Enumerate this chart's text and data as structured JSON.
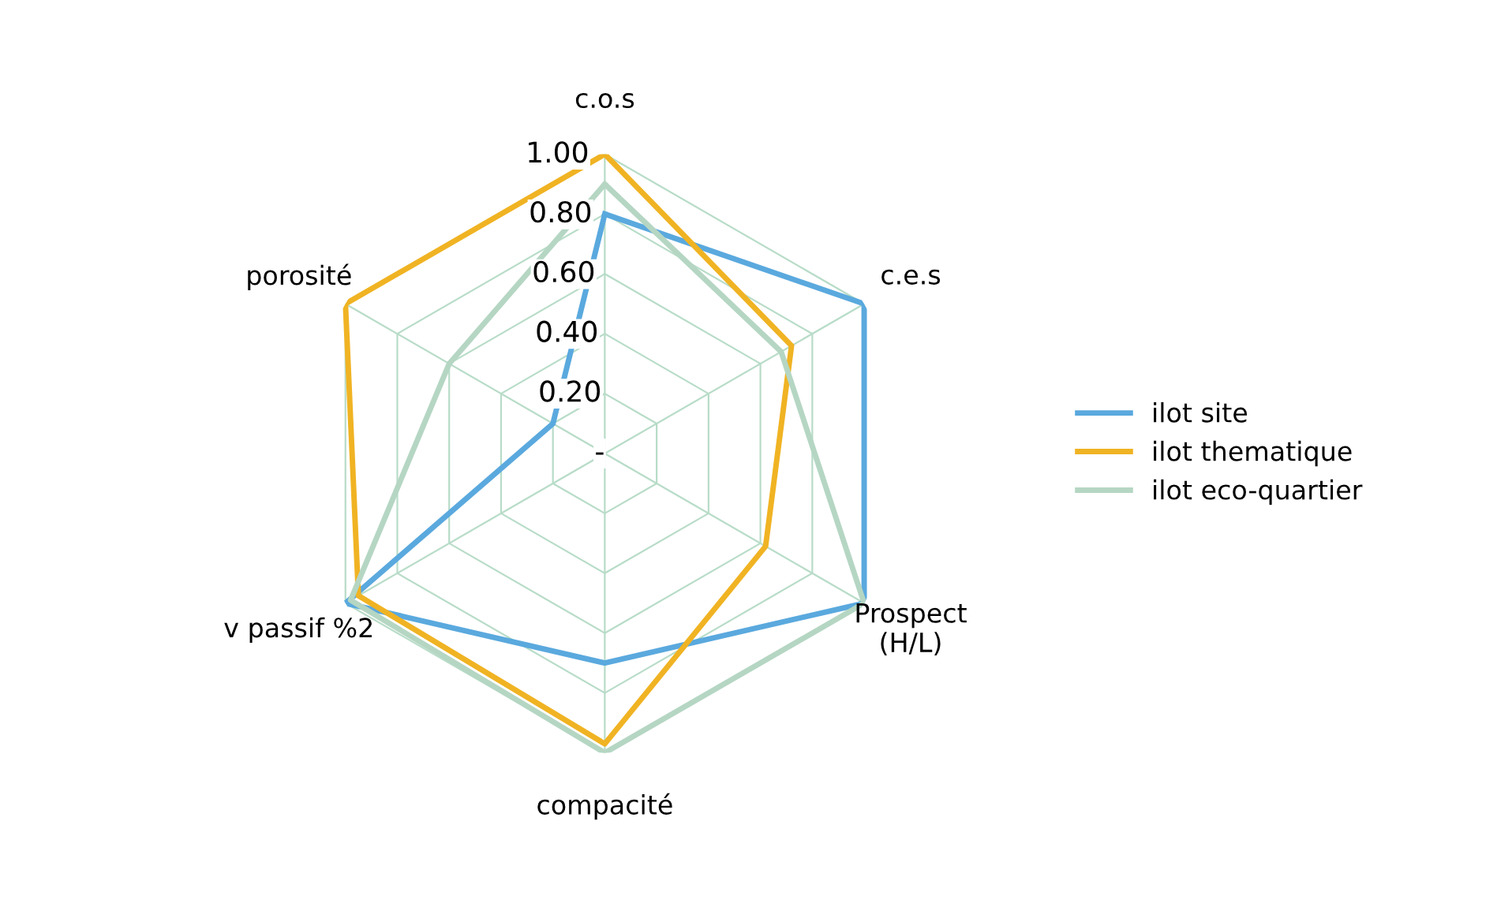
{
  "chart_data": {
    "type": "radar",
    "categories": [
      "c.o.s",
      "c.e.s",
      "Prospect\n(H/L)",
      "compacité",
      "v passif %2",
      "porosité"
    ],
    "series": [
      {
        "name": "ilot site",
        "color": "#5aa9de",
        "values": [
          0.8,
          1.0,
          1.0,
          0.7,
          1.0,
          0.2
        ]
      },
      {
        "name": "ilot thematique",
        "color": "#f0b323",
        "values": [
          1.0,
          0.72,
          0.62,
          0.97,
          0.95,
          1.0
        ]
      },
      {
        "name": "ilot eco-quartier",
        "color": "#b5d6c3",
        "values": [
          0.9,
          0.68,
          1.0,
          1.0,
          0.98,
          0.6
        ]
      }
    ],
    "ylim": [
      0,
      1
    ],
    "yticks": [
      {
        "value": 0,
        "label": "-"
      },
      {
        "value": 0.2,
        "label": "0.20"
      },
      {
        "value": 0.4,
        "label": "0.40"
      },
      {
        "value": 0.6,
        "label": "0.60"
      },
      {
        "value": 0.8,
        "label": "0.80"
      },
      {
        "value": 1.0,
        "label": "1.00"
      }
    ],
    "grid": true,
    "legend": "right"
  }
}
